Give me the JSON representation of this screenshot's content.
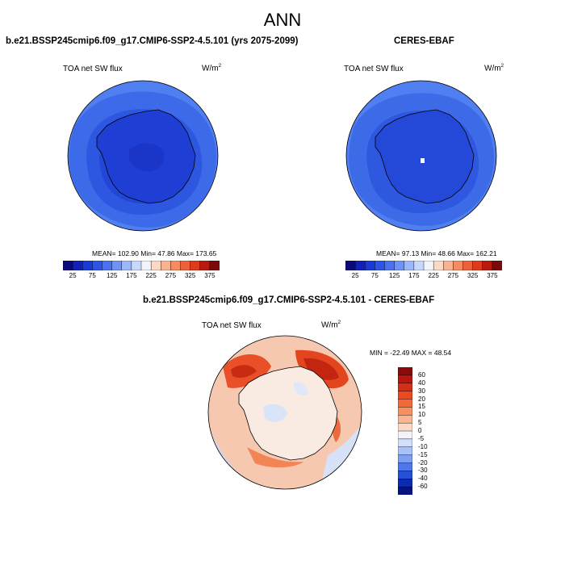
{
  "main_title": "ANN",
  "panels": {
    "model": {
      "title": "b.e21.BSSP245cmip6.f09_g17.CMIP6-SSP2-4.5.101 (yrs 2075-2099)",
      "variable": "TOA net SW flux",
      "units_base": "W/m",
      "units_exp": "2",
      "stats": "MEAN= 102.90  Min=  47.86  Max= 173.65"
    },
    "obs": {
      "title": "CERES-EBAF",
      "variable": "TOA net SW flux",
      "units_base": "W/m",
      "units_exp": "2",
      "stats": "MEAN=  97.13  Min=  48.66  Max= 162.21"
    },
    "diff": {
      "title": "b.e21.BSSP245cmip6.f09_g17.CMIP6-SSP2-4.5.101 - CERES-EBAF",
      "variable": "TOA net SW flux",
      "units_base": "W/m",
      "units_exp": "2",
      "stats": "MIN = -22.49 MAX =  48.54"
    }
  },
  "colorbars": {
    "abs_ticks": [
      "25",
      "75",
      "125",
      "175",
      "225",
      "275",
      "325",
      "375"
    ],
    "abs_colors": [
      "#0a0a7a",
      "#1020b8",
      "#1a3ad8",
      "#2c55e8",
      "#4a72f0",
      "#6f92f6",
      "#9bb6fa",
      "#c7d8fc",
      "#f2f4f8",
      "#fbd9c5",
      "#f8b393",
      "#f58a63",
      "#ee5f3b",
      "#dd3a1e",
      "#b81a0e",
      "#7a0a0a"
    ],
    "diff_labels": [
      "60",
      "40",
      "30",
      "20",
      "15",
      "10",
      "5",
      "0",
      "-5",
      "-10",
      "-15",
      "-20",
      "-30",
      "-40",
      "-60"
    ],
    "diff_colors": [
      "#8a0c0a",
      "#b8170e",
      "#d42e16",
      "#ea4a22",
      "#f26a3c",
      "#f6905f",
      "#f9b591",
      "#fbd9c4",
      "#f3f4f8",
      "#d3e0fa",
      "#a8c2f7",
      "#7c9ff2",
      "#4e78ea",
      "#2650d8",
      "#0d2bb0",
      "#061480"
    ]
  }
}
